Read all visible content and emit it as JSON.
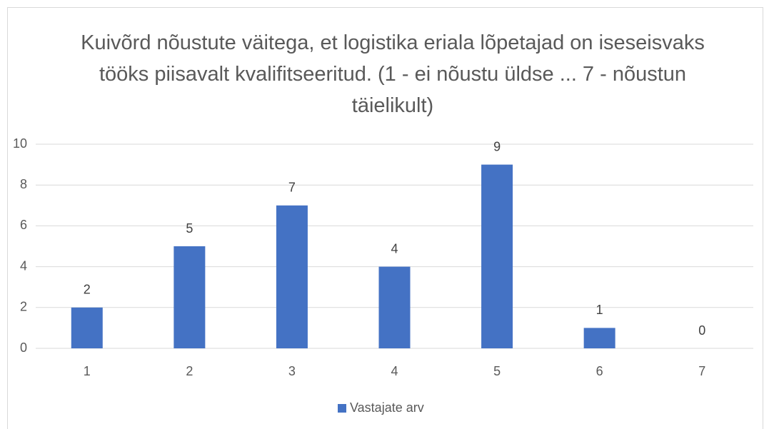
{
  "chart_data": {
    "type": "bar",
    "title": "Kuivõrd nõustute väitega, et logistika eriala lõpetajad on iseseisvaks tööks piisavalt kvalifitseeritud. (1 - ei nõustu üldse ... 7 - nõustun täielikult)",
    "categories": [
      "1",
      "2",
      "3",
      "4",
      "5",
      "6",
      "7"
    ],
    "series": [
      {
        "name": "Vastajate arv",
        "color": "#4472c4",
        "values": [
          2,
          5,
          7,
          4,
          9,
          1,
          0
        ]
      }
    ],
    "ylim": [
      0,
      10
    ],
    "yticks": [
      0,
      2,
      4,
      6,
      8,
      10
    ],
    "grid": true,
    "legend": "bottom"
  }
}
